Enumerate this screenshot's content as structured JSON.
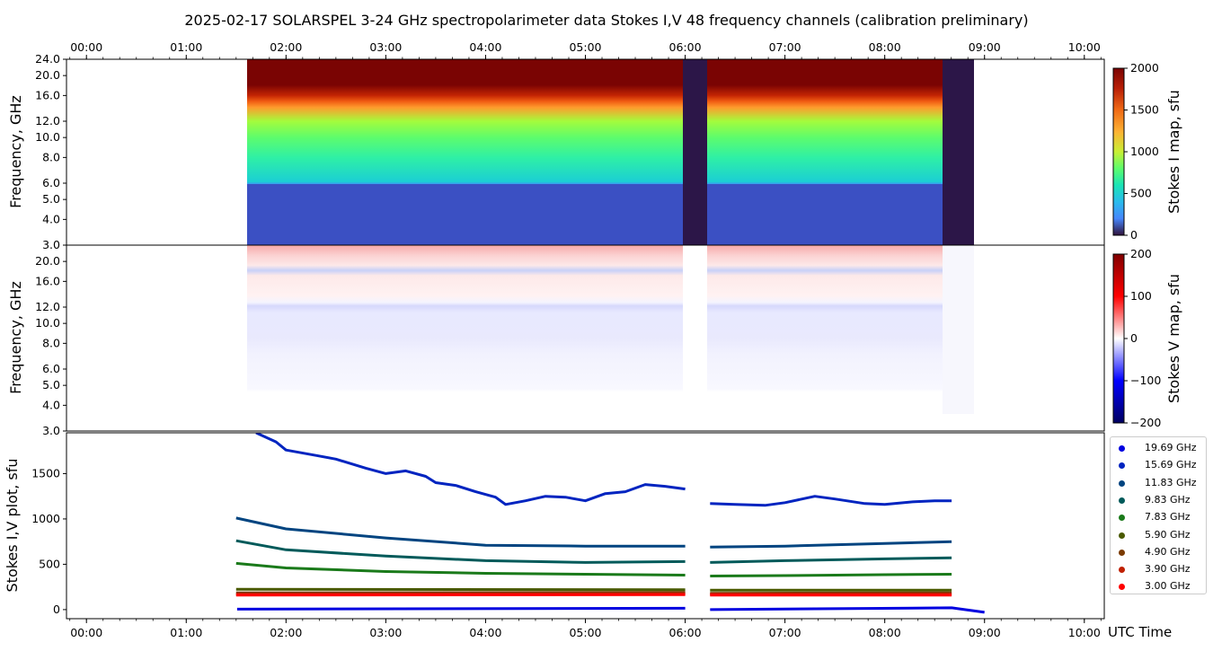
{
  "title": "2025-02-17  SOLARSPEL  3-24 GHz spectropolarimeter data   Stokes I,V   48 frequency channels   (calibration preliminary)",
  "time_axis": {
    "ticks": [
      "00:00",
      "01:00",
      "02:00",
      "03:00",
      "04:00",
      "05:00",
      "06:00",
      "07:00",
      "08:00",
      "09:00",
      "10:00"
    ],
    "range_hours": [
      -0.2,
      10.2
    ],
    "label": "UTC Time"
  },
  "freq_axis": {
    "ticks_top": [
      "3.0",
      "4.0",
      "5.0",
      "6.0",
      "8.0",
      "10.0",
      "12.0",
      "16.0",
      "20.0",
      "24.0"
    ],
    "ticks_mid": [
      "3.0",
      "4.0",
      "5.0",
      "6.0",
      "8.0",
      "10.0",
      "12.0",
      "16.0",
      "20.0"
    ],
    "ticks_values": [
      3,
      4,
      5,
      6,
      8,
      10,
      12,
      16,
      20,
      24
    ],
    "scale": "log",
    "range": [
      3,
      24
    ]
  },
  "panels": {
    "stokes_i": {
      "ylabel": "Frequency, GHz",
      "cbar_label": "Stokes I map, sfu",
      "cbar_ticks": [
        "0",
        "500",
        "1000",
        "1500",
        "2000"
      ],
      "cbar_range": [
        0,
        2000
      ],
      "colormap": "turbo"
    },
    "stokes_v": {
      "ylabel": "Frequency, GHz",
      "cbar_label": "Stokes V map, sfu",
      "cbar_ticks": [
        "−200",
        "−100",
        "0",
        "100",
        "200"
      ],
      "cbar_range": [
        -200,
        200
      ],
      "colormap": "seismic"
    },
    "plot": {
      "ylabel": "Stokes I,V plot, sfu",
      "yticks": [
        "0",
        "500",
        "1000",
        "1500"
      ],
      "yrange": [
        -100,
        1950
      ]
    }
  },
  "chart_data": [
    {
      "type": "heatmap",
      "title": "Stokes I map",
      "x_range_hours": [
        1.5,
        9.0
      ],
      "gaps_hours": [
        [
          6.0,
          6.25
        ],
        [
          8.67,
          9.0
        ]
      ],
      "y_range_ghz": [
        3,
        24
      ],
      "z_range_sfu": [
        0,
        2000
      ],
      "profile_freq_ghz": [
        3,
        5.9,
        6.1,
        8,
        10,
        12,
        14,
        15,
        16,
        18,
        24
      ],
      "profile_value_sfu": [
        280,
        300,
        420,
        570,
        820,
        1050,
        1320,
        1500,
        1800,
        2000,
        2000
      ]
    },
    {
      "type": "heatmap",
      "title": "Stokes V map",
      "x_range_hours": [
        1.5,
        9.0
      ],
      "y_range_ghz": [
        3,
        24
      ],
      "z_range_sfu": [
        -200,
        200
      ]
    },
    {
      "type": "scatter",
      "title": "Stokes I,V plot",
      "x_unit": "hours UTC",
      "y_unit": "sfu",
      "gap_hours": [
        6.0,
        6.25
      ],
      "series": [
        {
          "name": "19.69 GHz",
          "color": "#0000e0",
          "x": [
            1.51,
            6.0,
            6.25,
            8.67,
            9.0
          ],
          "y": [
            5,
            15,
            0,
            20,
            -30
          ]
        },
        {
          "name": "15.69 GHz",
          "color": "#0024c0",
          "x": [
            1.7,
            1.9,
            2.0,
            2.3,
            2.5,
            2.8,
            3.0,
            3.2,
            3.4,
            3.5,
            3.7,
            3.9,
            4.1,
            4.2,
            4.4,
            4.6,
            4.8,
            5.0,
            5.2,
            5.4,
            5.6,
            5.8,
            6.0,
            6.25,
            6.5,
            6.8,
            7.0,
            7.3,
            7.5,
            7.8,
            8.0,
            8.3,
            8.5,
            8.67
          ],
          "y": [
            1950,
            1850,
            1760,
            1700,
            1660,
            1560,
            1500,
            1530,
            1470,
            1400,
            1370,
            1300,
            1240,
            1160,
            1200,
            1250,
            1240,
            1200,
            1280,
            1300,
            1380,
            1360,
            1330,
            1170,
            1160,
            1150,
            1180,
            1250,
            1220,
            1170,
            1160,
            1190,
            1200,
            1200
          ]
        },
        {
          "name": "11.83 GHz",
          "color": "#004480",
          "x": [
            1.5,
            2.0,
            3.0,
            4.0,
            5.0,
            6.0,
            6.25,
            7.0,
            8.0,
            8.67
          ],
          "y": [
            1010,
            890,
            790,
            710,
            700,
            700,
            690,
            700,
            730,
            750
          ]
        },
        {
          "name": "9.83 GHz",
          "color": "#005a5a",
          "x": [
            1.5,
            2.0,
            3.0,
            4.0,
            5.0,
            6.0,
            6.25,
            7.0,
            8.0,
            8.67
          ],
          "y": [
            760,
            660,
            590,
            540,
            520,
            530,
            520,
            540,
            560,
            570
          ]
        },
        {
          "name": "7.83 GHz",
          "color": "#1a7a1a",
          "x": [
            1.5,
            2.0,
            3.0,
            4.0,
            5.0,
            6.0,
            6.25,
            7.0,
            8.0,
            8.67
          ],
          "y": [
            510,
            460,
            420,
            400,
            390,
            380,
            370,
            375,
            385,
            390
          ]
        },
        {
          "name": "5.90 GHz",
          "color": "#4a5a00",
          "x": [
            1.5,
            6.0,
            6.25,
            8.67
          ],
          "y": [
            225,
            220,
            215,
            215
          ]
        },
        {
          "name": "4.90 GHz",
          "color": "#7a3a00",
          "x": [
            1.5,
            6.0,
            6.25,
            8.67
          ],
          "y": [
            185,
            190,
            180,
            185
          ]
        },
        {
          "name": "3.90 GHz",
          "color": "#c02000",
          "x": [
            1.5,
            6.0,
            6.25,
            8.67
          ],
          "y": [
            170,
            175,
            170,
            170
          ]
        },
        {
          "name": "3.00 GHz",
          "color": "#ff0000",
          "x": [
            1.5,
            6.0,
            6.25,
            8.67
          ],
          "y": [
            160,
            165,
            160,
            160
          ]
        }
      ]
    }
  ]
}
